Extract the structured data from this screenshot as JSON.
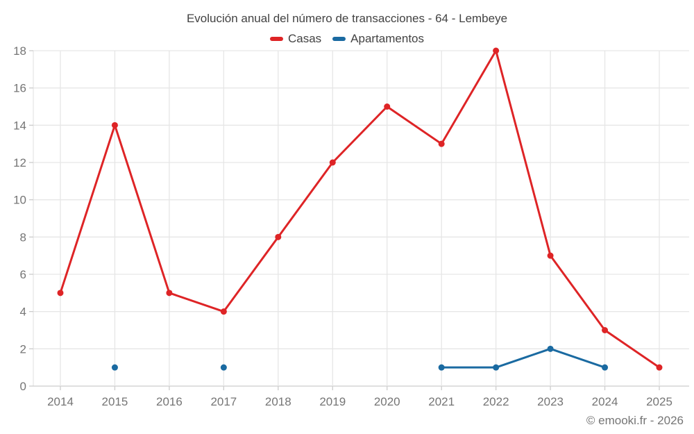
{
  "chart_data": {
    "type": "line",
    "title": "Evolución anual del número de transacciones - 64 - Lembeye",
    "categories": [
      "2014",
      "2015",
      "2016",
      "2017",
      "2018",
      "2019",
      "2020",
      "2021",
      "2022",
      "2023",
      "2024",
      "2025"
    ],
    "series": [
      {
        "name": "Casas",
        "color": "#de2426",
        "values": [
          5,
          14,
          5,
          4,
          8,
          12,
          15,
          13,
          18,
          7,
          3,
          1
        ]
      },
      {
        "name": "Apartamentos",
        "color": "#1a6aa1",
        "values": [
          null,
          1,
          null,
          1,
          null,
          null,
          null,
          1,
          1,
          2,
          1,
          null
        ]
      }
    ],
    "xlabel": "",
    "ylabel": "",
    "ylim": [
      0,
      18
    ],
    "yticks": [
      0,
      2,
      4,
      6,
      8,
      10,
      12,
      14,
      16,
      18
    ],
    "grid": true,
    "legend_position": "top",
    "grid_color": "#e6e6e6",
    "axis_color": "#cccccc",
    "tick_label_color": "#757575",
    "title_color": "#424242",
    "footer": "© emooki.fr - 2026"
  }
}
